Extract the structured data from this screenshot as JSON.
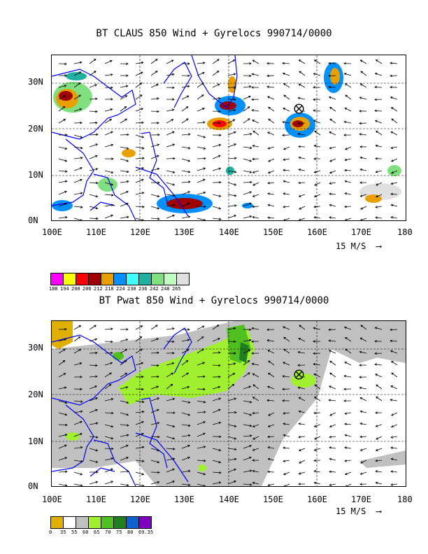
{
  "top": {
    "title": "BT CLAUS 850 Wind + Gyrelocs 990714/0000",
    "x_ticks": [
      "100E",
      "110E",
      "120E",
      "130E",
      "140E",
      "150E",
      "160E",
      "170E",
      "180"
    ],
    "y_ticks": [
      "30N",
      "20N",
      "10N",
      "0N"
    ],
    "ref_vector": "15 M/S",
    "colorbar": {
      "labels": [
        "188",
        "194",
        "200",
        "206",
        "212",
        "218",
        "224",
        "230",
        "236",
        "242",
        "248",
        "265"
      ],
      "colors": [
        "#ff00ff",
        "#ffff00",
        "#ff0000",
        "#a00000",
        "#e8a000",
        "#0090ff",
        "#40ffff",
        "#20b0a0",
        "#80e080",
        "#c0ffc0",
        "#e0e0e0"
      ]
    }
  },
  "bottom": {
    "title": "BT Pwat 850 Wind + Gyrelocs 990714/0000",
    "x_ticks": [
      "100E",
      "110E",
      "120E",
      "130E",
      "140E",
      "150E",
      "160E",
      "170E",
      "180"
    ],
    "y_ticks": [
      "30N",
      "20N",
      "10N",
      "0N"
    ],
    "ref_vector": "15 M/S",
    "colorbar": {
      "labels": [
        "0",
        "35",
        "55",
        "60",
        "65",
        "70",
        "75",
        "80",
        "69.35"
      ],
      "colors": [
        "#e0b000",
        "#ffffff",
        "#c0c0c0",
        "#a0f030",
        "#50c020",
        "#208020",
        "#1060d0",
        "#8000c0"
      ]
    }
  },
  "gyre_marker": {
    "symbol": "⊗",
    "lon": 156,
    "lat": 24
  }
}
